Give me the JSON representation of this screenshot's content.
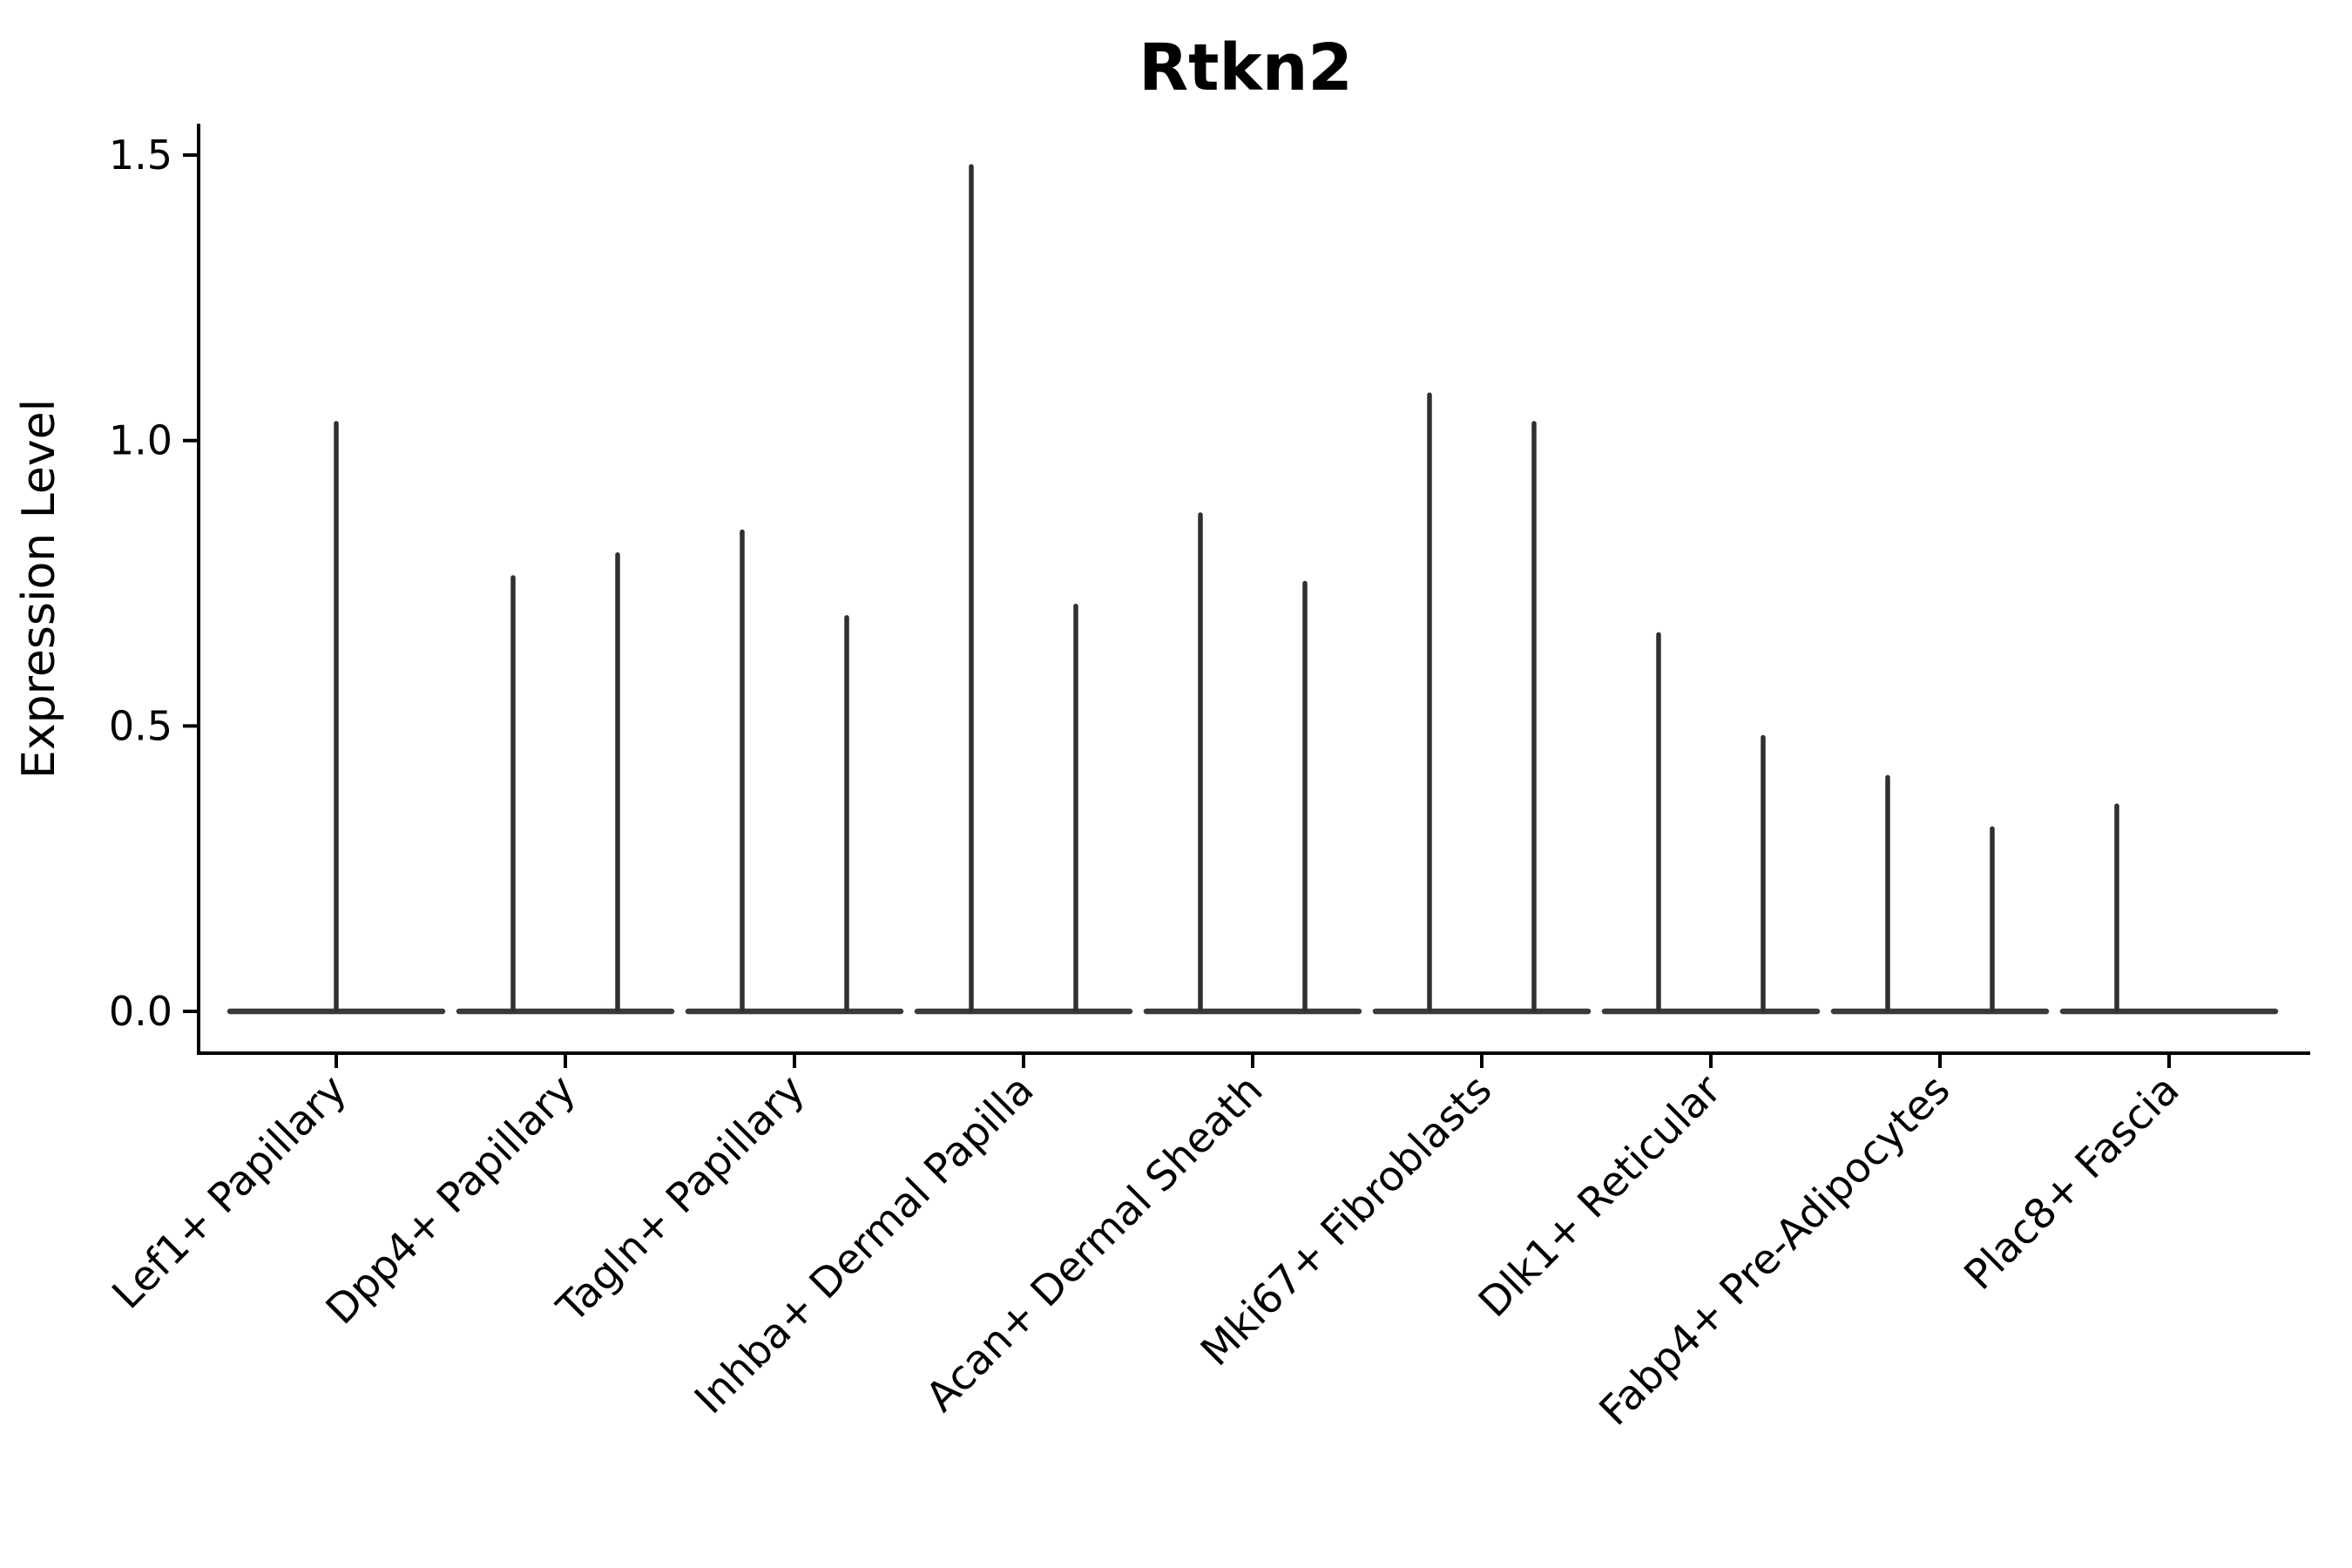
{
  "figure": {
    "background": "#ffffff"
  },
  "chart_data": {
    "type": "violin",
    "title": "Rtkn2",
    "ylabel": "Expression Level",
    "xlabel": "",
    "grid": false,
    "legend": null,
    "ylim": [
      -0.07,
      1.56
    ],
    "baseline_value": 0.0,
    "yticks": [
      {
        "label": "0.0",
        "value": 0.0
      },
      {
        "label": "0.5",
        "value": 0.5
      },
      {
        "label": "1.0",
        "value": 1.0
      },
      {
        "label": "1.5",
        "value": 1.5
      }
    ],
    "categories": [
      "Lef1+ Papillary",
      "Dpp4+ Papillary",
      "Tagln+ Papillary",
      "Inhba+ Dermal Papilla",
      "Acan+ Dermal Sheath",
      "Mki67+ Fibroblasts",
      "Dlk1+ Reticular",
      "Fabp4+ Pre-Adipocytes",
      "Plac8+ Fascia"
    ],
    "violins": [
      {
        "category": "Lef1+ Papillary",
        "body_at_zero": true,
        "spikes": [
          {
            "group": "center",
            "max": 1.03
          }
        ]
      },
      {
        "category": "Dpp4+ Papillary",
        "body_at_zero": true,
        "spikes": [
          {
            "group": "left",
            "max": 0.76
          },
          {
            "group": "right",
            "max": 0.8
          }
        ]
      },
      {
        "category": "Tagln+ Papillary",
        "body_at_zero": true,
        "spikes": [
          {
            "group": "left",
            "max": 0.84
          },
          {
            "group": "right",
            "max": 0.69
          }
        ]
      },
      {
        "category": "Inhba+ Dermal Papilla",
        "body_at_zero": true,
        "spikes": [
          {
            "group": "left",
            "max": 1.48
          },
          {
            "group": "right",
            "max": 0.71
          }
        ]
      },
      {
        "category": "Acan+ Dermal Sheath",
        "body_at_zero": true,
        "spikes": [
          {
            "group": "left",
            "max": 0.87
          },
          {
            "group": "right",
            "max": 0.75
          }
        ]
      },
      {
        "category": "Mki67+ Fibroblasts",
        "body_at_zero": true,
        "spikes": [
          {
            "group": "left",
            "max": 1.08
          },
          {
            "group": "right",
            "max": 1.03
          }
        ]
      },
      {
        "category": "Dlk1+ Reticular",
        "body_at_zero": true,
        "spikes": [
          {
            "group": "left",
            "max": 0.66
          },
          {
            "group": "right",
            "max": 0.48
          }
        ]
      },
      {
        "category": "Fabp4+ Pre-Adipocytes",
        "body_at_zero": true,
        "spikes": [
          {
            "group": "left",
            "max": 0.41
          },
          {
            "group": "right",
            "max": 0.32
          }
        ]
      },
      {
        "category": "Plac8+ Fascia",
        "body_at_zero": true,
        "spikes": [
          {
            "group": "left",
            "max": 0.36
          }
        ]
      }
    ],
    "colors": {
      "violin_stroke": "#303030",
      "violin_body_stroke": "#3a3a3a",
      "axis": "#000000",
      "text": "#000000"
    }
  }
}
